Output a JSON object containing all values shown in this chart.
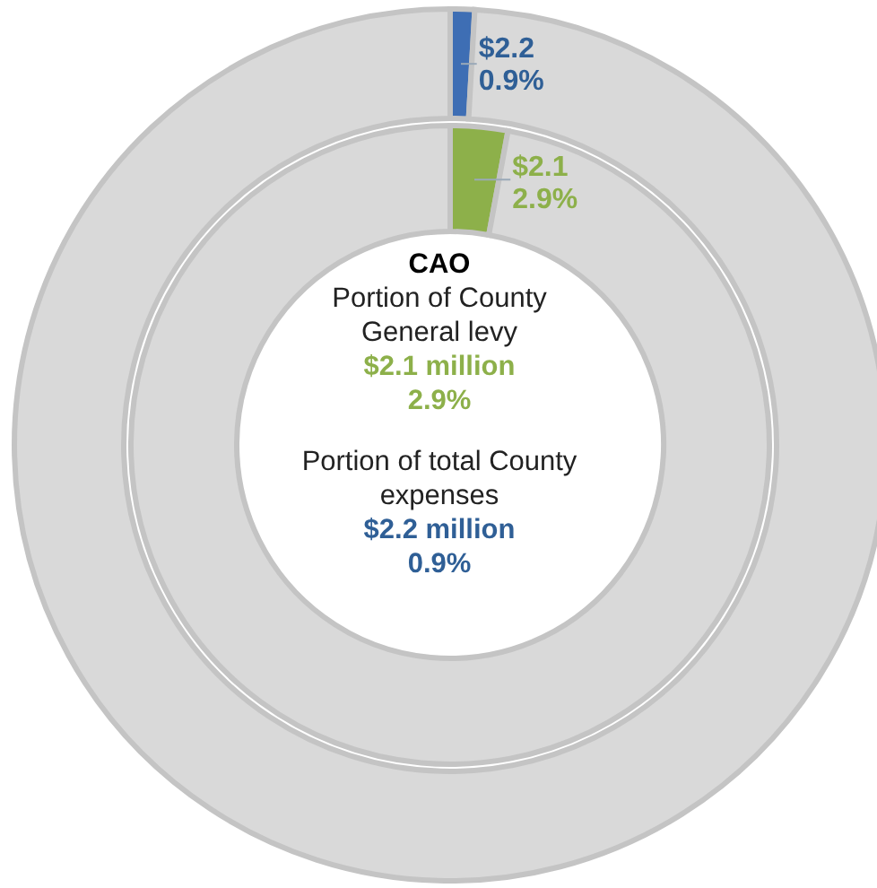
{
  "chart_data": [
    {
      "type": "donut",
      "title": "CAO",
      "categories": [
        null,
        null
      ],
      "values": [
        2.9,
        97.1
      ],
      "colors": [
        "#8db04a",
        "#d9d9d9"
      ],
      "value_labels": [
        "$2.1\n2.9%",
        null
      ],
      "annotations": [
        "Portion of County\nGeneral levy",
        "$2.1 million\n2.9%"
      ]
    },
    {
      "type": "donut",
      "categories": [
        null,
        null
      ],
      "values": [
        0.9,
        99.1
      ],
      "colors": [
        "#3e6eb4",
        "#d9d9d9"
      ],
      "value_labels": [
        "$2.2\n0.9%",
        null
      ],
      "annotations": [
        "Portion of total County\nexpenses",
        "$2.2 million\n0.9%"
      ]
    }
  ]
}
